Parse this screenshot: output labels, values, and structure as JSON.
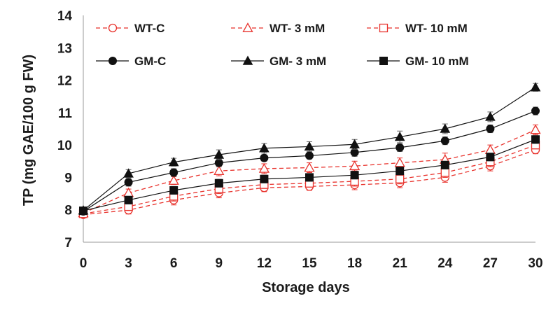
{
  "chart_data": {
    "type": "line",
    "title": "",
    "xlabel": "Storage days",
    "ylabel": "TP (mg GAE/100 g FW)",
    "x": [
      0,
      3,
      6,
      9,
      12,
      15,
      18,
      21,
      24,
      27,
      30
    ],
    "x_tick_labels": [
      "0",
      "3",
      "6",
      "9",
      "12",
      "15",
      "18",
      "21",
      "24",
      "27",
      "30"
    ],
    "y_tick_labels": [
      "7",
      "8",
      "9",
      "10",
      "11",
      "12",
      "13",
      "14"
    ],
    "xlim": [
      0,
      30
    ],
    "ylim": [
      7,
      14
    ],
    "grid": false,
    "legend_position": "top",
    "series": [
      {
        "name": "WT-C",
        "color": "#e8322c",
        "dash": true,
        "marker": "circle-open",
        "values": [
          7.85,
          7.99,
          8.3,
          8.52,
          8.68,
          8.72,
          8.77,
          8.83,
          9.0,
          9.35,
          9.85
        ],
        "errors": [
          0.08,
          0.12,
          0.15,
          0.15,
          0.12,
          0.12,
          0.15,
          0.15,
          0.15,
          0.15,
          0.12
        ]
      },
      {
        "name": "WT- 3 mM",
        "color": "#e8322c",
        "dash": true,
        "marker": "triangle-open",
        "values": [
          7.9,
          8.52,
          8.9,
          9.2,
          9.27,
          9.3,
          9.35,
          9.45,
          9.55,
          9.85,
          10.47
        ],
        "errors": [
          0.08,
          0.12,
          0.12,
          0.15,
          0.15,
          0.15,
          0.15,
          0.15,
          0.2,
          0.15,
          0.15
        ]
      },
      {
        "name": "WT- 10 mM",
        "color": "#e8322c",
        "dash": true,
        "marker": "square-open",
        "values": [
          7.88,
          8.1,
          8.42,
          8.65,
          8.78,
          8.82,
          8.88,
          8.95,
          9.15,
          9.48,
          10.0
        ],
        "errors": [
          0.08,
          0.12,
          0.15,
          0.15,
          0.12,
          0.12,
          0.15,
          0.15,
          0.15,
          0.15,
          0.12
        ]
      },
      {
        "name": "GM-C",
        "color": "#111111",
        "dash": false,
        "marker": "circle",
        "values": [
          7.95,
          8.85,
          9.15,
          9.45,
          9.6,
          9.67,
          9.77,
          9.92,
          10.13,
          10.5,
          11.05
        ],
        "errors": [
          0.08,
          0.12,
          0.12,
          0.12,
          0.1,
          0.1,
          0.12,
          0.12,
          0.12,
          0.12,
          0.12
        ]
      },
      {
        "name": "GM- 3 mM",
        "color": "#111111",
        "dash": false,
        "marker": "triangle",
        "values": [
          7.98,
          9.12,
          9.47,
          9.7,
          9.9,
          9.95,
          10.02,
          10.25,
          10.5,
          10.87,
          11.78
        ],
        "errors": [
          0.08,
          0.12,
          0.12,
          0.15,
          0.15,
          0.15,
          0.15,
          0.18,
          0.15,
          0.15,
          0.12
        ]
      },
      {
        "name": "GM- 10 mM",
        "color": "#111111",
        "dash": false,
        "marker": "square",
        "values": [
          7.97,
          8.3,
          8.6,
          8.82,
          8.95,
          9.0,
          9.07,
          9.2,
          9.38,
          9.63,
          10.17
        ],
        "errors": [
          0.08,
          0.12,
          0.12,
          0.12,
          0.12,
          0.12,
          0.12,
          0.12,
          0.12,
          0.12,
          0.12
        ]
      }
    ]
  }
}
